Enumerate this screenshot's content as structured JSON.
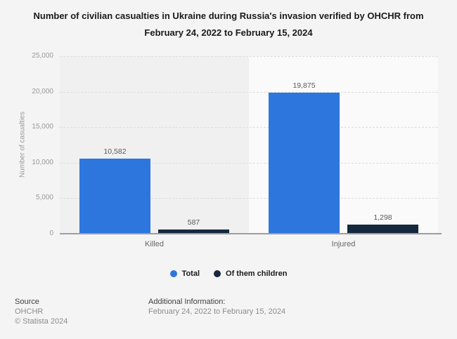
{
  "chart_data": {
    "type": "bar",
    "title": "Number of civilian casualties in Ukraine during Russia's invasion verified by OHCHR from February 24, 2022 to February 15, 2024",
    "ylabel": "Number of casualties",
    "xlabel": "",
    "categories": [
      "Killed",
      "Injured"
    ],
    "series": [
      {
        "name": "Total",
        "color": "#2d76dd",
        "values": [
          10582,
          19875
        ],
        "labels": [
          "10,582",
          "19,875"
        ]
      },
      {
        "name": "Of them children",
        "color": "#15283e",
        "values": [
          587,
          1298
        ],
        "labels": [
          "587",
          "1,298"
        ]
      }
    ],
    "ylim": [
      0,
      25000
    ],
    "yticks": [
      0,
      5000,
      10000,
      15000,
      20000,
      25000
    ],
    "ytick_labels": [
      "0",
      "5,000",
      "10,000",
      "15,000",
      "20,000",
      "25,000"
    ],
    "grid": "horizontal-dashed",
    "legend_position": "bottom",
    "band_colors": [
      "#f0f0f0",
      "#fafafa"
    ]
  },
  "footer": {
    "source_heading": "Source",
    "source_name": "OHCHR",
    "copyright": "© Statista 2024",
    "additional_heading": "Additional Information:",
    "additional_text": "February 24, 2022 to February 15, 2024"
  },
  "colors": {
    "background": "#f4f4f4",
    "title_text": "#1a1a1a",
    "axis_line": "#9e9e9e",
    "tick_text": "#999999",
    "value_label_text": "#595959"
  }
}
